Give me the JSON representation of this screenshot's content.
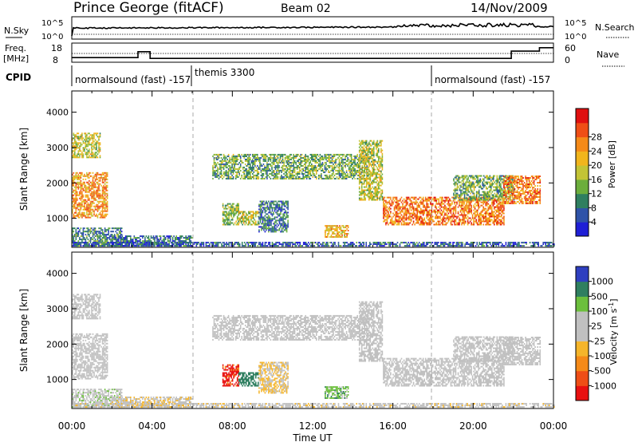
{
  "header": {
    "station": "Prince George (fitACF)",
    "beam": "Beam 02",
    "date": "14/Nov/2009"
  },
  "side_labels": {
    "nsky": "N.Sky",
    "nsearch": "N.Search",
    "freq": "Freq.",
    "mhz": "[MHz]",
    "nave": "Nave",
    "cpid": "CPID",
    "nsky_tick_hi": "10^5",
    "nsky_tick_lo": "10^0",
    "freq_tick_hi": "18",
    "freq_tick_lo": "8",
    "nave_tick_hi": "60",
    "nave_tick_lo": "0"
  },
  "cpid_modes": [
    {
      "label": "normalsound (fast) -157",
      "start_h": 0
    },
    {
      "label": "themis 3300",
      "start_h": 6
    },
    {
      "label": "normalsound (fast) -157",
      "start_h": 18
    }
  ],
  "axes": {
    "xlabel": "Time UT",
    "ylabel": "Slant Range [km]",
    "x_ticks": [
      "00:00",
      "04:00",
      "08:00",
      "12:00",
      "16:00",
      "20:00",
      "00:00"
    ],
    "y_ticks": [
      "1000",
      "2000",
      "3000",
      "4000"
    ],
    "xlim_hours": [
      0,
      24
    ],
    "ylim_km": [
      180,
      4600
    ]
  },
  "colorbars": {
    "power": {
      "label": "Power [dB]",
      "ticks": [
        "4",
        "8",
        "12",
        "16",
        "20",
        "24",
        "28"
      ],
      "colors": [
        "#1f1fd6",
        "#2f53a8",
        "#2f7f60",
        "#6cae3c",
        "#c3c435",
        "#f1b51c",
        "#f58a18",
        "#ef4e16",
        "#e01010"
      ]
    },
    "velocity": {
      "label": "Velocity [m s^-1]",
      "ticks": [
        "1000",
        "500",
        "100",
        "25",
        "-25",
        "-100",
        "-500",
        "-1000"
      ],
      "colors": [
        "#2f3fc0",
        "#2f7f60",
        "#6cbf3c",
        "#c0c0c0",
        "#c0c0c0",
        "#f5b52a",
        "#f58a18",
        "#ef4e16",
        "#e81010"
      ]
    }
  },
  "chart_data": {
    "type": "heatmap",
    "title": "Prince George (fitACF)",
    "xlabel": "Time UT",
    "ylabel": "Slant Range [km]",
    "x_range_hours": [
      0,
      24
    ],
    "y_range_km": [
      180,
      4600
    ],
    "scatter_regions": [
      {
        "t0": 0.0,
        "t1": 1.4,
        "r0": 2700,
        "r1": 3400,
        "power": 16,
        "velocity": 0
      },
      {
        "t0": 0.0,
        "t1": 1.8,
        "r0": 1000,
        "r1": 2300,
        "power": 22,
        "velocity": 0
      },
      {
        "t0": 0.0,
        "t1": 2.5,
        "r0": 200,
        "r1": 700,
        "power": 9,
        "velocity": 40
      },
      {
        "t0": 2.0,
        "t1": 6.0,
        "r0": 200,
        "r1": 500,
        "power": 7,
        "velocity": -50
      },
      {
        "t0": 7.0,
        "t1": 14.8,
        "r0": 2100,
        "r1": 2800,
        "power": 12,
        "velocity": 0
      },
      {
        "t0": 7.5,
        "t1": 8.3,
        "r0": 800,
        "r1": 1400,
        "power": 14,
        "velocity": -800
      },
      {
        "t0": 8.3,
        "t1": 9.3,
        "r0": 800,
        "r1": 1200,
        "power": 16,
        "velocity": 400
      },
      {
        "t0": 9.3,
        "t1": 10.8,
        "r0": 600,
        "r1": 1500,
        "power": 8,
        "velocity": -60
      },
      {
        "t0": 12.6,
        "t1": 13.8,
        "r0": 450,
        "r1": 800,
        "power": 20,
        "velocity": 150
      },
      {
        "t0": 14.3,
        "t1": 15.5,
        "r0": 1500,
        "r1": 3200,
        "power": 16,
        "velocity": 0
      },
      {
        "t0": 15.5,
        "t1": 21.5,
        "r0": 800,
        "r1": 1600,
        "power": 24,
        "velocity": 0
      },
      {
        "t0": 19.0,
        "t1": 22.0,
        "r0": 1500,
        "r1": 2200,
        "power": 12,
        "velocity": 0
      },
      {
        "t0": 21.5,
        "t1": 23.3,
        "r0": 1400,
        "r1": 2200,
        "power": 24,
        "velocity": 0
      },
      {
        "t0": 0.0,
        "t1": 24.0,
        "r0": 200,
        "r1": 320,
        "power": 6,
        "velocity": -40
      }
    ],
    "mode_boundaries_hours": [
      6,
      18
    ],
    "frequency_MHz": [
      {
        "t0": 0,
        "t1": 3.3,
        "value": 10.4
      },
      {
        "t0": 3.3,
        "t1": 3.9,
        "value": 13.5
      },
      {
        "t0": 3.9,
        "t1": 21.9,
        "value": 10.0
      },
      {
        "t0": 21.9,
        "t1": 23.3,
        "value": 13.8
      },
      {
        "t0": 23.3,
        "t1": 24,
        "value": 15.6
      }
    ],
    "nave_level": 33
  }
}
